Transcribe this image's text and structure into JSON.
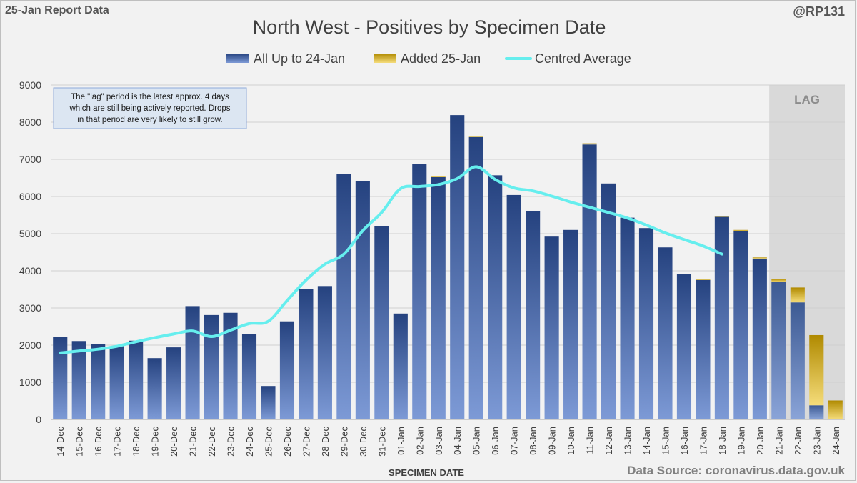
{
  "header": {
    "report_label": "25-Jan Report Data",
    "handle": "@RP131",
    "title": "North West - Positives by Specimen Date"
  },
  "footer": {
    "source": "Data Source: coronavirus.data.gov.uk"
  },
  "colors": {
    "base_dark": "#2f4f8f",
    "base_light": "#7a98d4",
    "added_dark": "#c9a000",
    "added_light": "#f7e08a",
    "average_line": "#66eeee",
    "lag_shade": "#d9d9d9"
  },
  "chart_data": {
    "type": "bar",
    "stacked": true,
    "title": "North West - Positives by Specimen Date",
    "xlabel": "SPECIMEN DATE",
    "ylabel": "",
    "ylim": [
      0,
      9000
    ],
    "yticks": [
      0,
      1000,
      2000,
      3000,
      4000,
      5000,
      6000,
      7000,
      8000,
      9000
    ],
    "grid": true,
    "legend_position": "top",
    "categories": [
      "14-Dec",
      "15-Dec",
      "16-Dec",
      "17-Dec",
      "18-Dec",
      "19-Dec",
      "20-Dec",
      "21-Dec",
      "22-Dec",
      "23-Dec",
      "24-Dec",
      "25-Dec",
      "26-Dec",
      "27-Dec",
      "28-Dec",
      "29-Dec",
      "30-Dec",
      "31-Dec",
      "01-Jan",
      "02-Jan",
      "03-Jan",
      "04-Jan",
      "05-Jan",
      "06-Jan",
      "07-Jan",
      "08-Jan",
      "09-Jan",
      "10-Jan",
      "11-Jan",
      "12-Jan",
      "13-Jan",
      "14-Jan",
      "15-Jan",
      "16-Jan",
      "17-Jan",
      "18-Jan",
      "19-Jan",
      "20-Jan",
      "21-Jan",
      "22-Jan",
      "23-Jan",
      "24-Jan"
    ],
    "series": [
      {
        "name": "All Up to 24-Jan",
        "kind": "bar",
        "values": [
          2220,
          2110,
          2020,
          1970,
          2120,
          1650,
          1940,
          3050,
          2810,
          2870,
          2290,
          900,
          2640,
          3500,
          3590,
          6610,
          6410,
          5200,
          2850,
          6880,
          6520,
          8190,
          7600,
          6570,
          6040,
          5610,
          4920,
          5100,
          7400,
          6350,
          5430,
          5150,
          4630,
          3920,
          3760,
          5460,
          5070,
          4330,
          3700,
          3150,
          380,
          0
        ]
      },
      {
        "name": "Added 25-Jan",
        "kind": "bar",
        "values": [
          0,
          0,
          0,
          0,
          0,
          0,
          0,
          0,
          0,
          0,
          0,
          0,
          0,
          0,
          0,
          0,
          0,
          0,
          0,
          0,
          30,
          0,
          30,
          0,
          0,
          0,
          0,
          0,
          30,
          0,
          0,
          0,
          0,
          0,
          20,
          20,
          30,
          30,
          80,
          400,
          1890,
          510
        ]
      },
      {
        "name": "Centred Average",
        "kind": "line",
        "values": [
          1790,
          1840,
          1890,
          1970,
          2090,
          2200,
          2300,
          2380,
          2230,
          2400,
          2580,
          2640,
          3200,
          3750,
          4180,
          4450,
          5080,
          5570,
          6210,
          6270,
          6320,
          6480,
          6800,
          6460,
          6230,
          6150,
          6010,
          5850,
          5710,
          5570,
          5420,
          5230,
          5020,
          4840,
          4670,
          4450,
          null,
          null,
          null,
          null,
          null,
          null
        ]
      }
    ],
    "lag_region": {
      "label": "LAG",
      "from_category": "21-Jan",
      "to_category": "24-Jan"
    },
    "annotation": {
      "lines": [
        "The \"lag\" period is the latest approx. 4 days",
        "which are still being actively reported.  Drops",
        "in that period are very likely to still grow."
      ]
    }
  }
}
